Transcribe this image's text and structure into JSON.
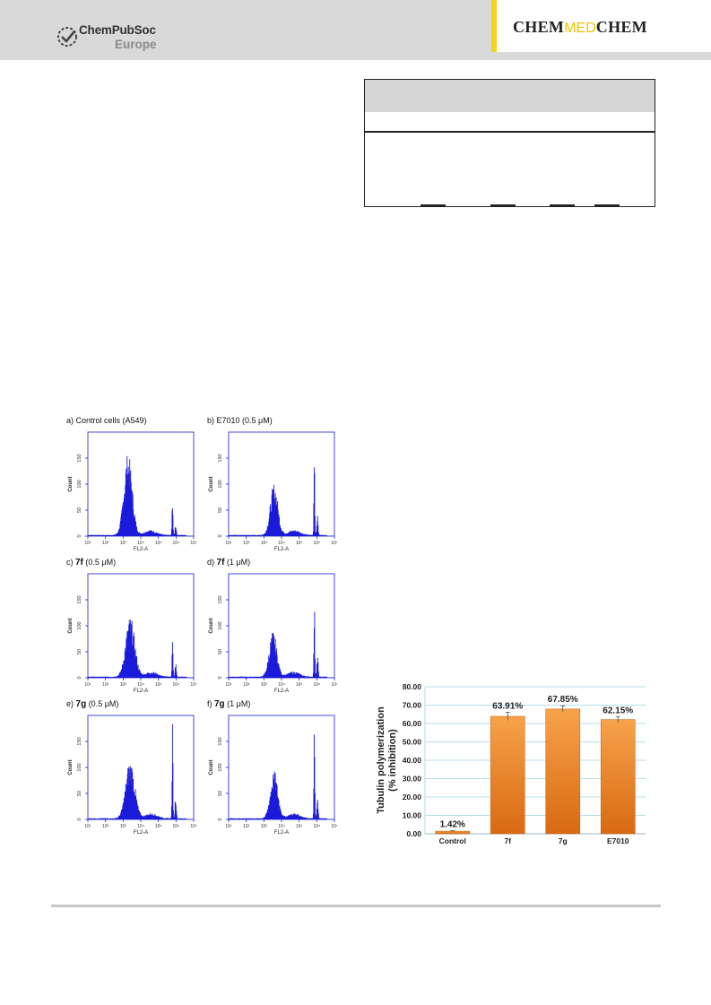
{
  "header": {
    "publisher": "ChemPubSoc",
    "publisher_sub": "Europe",
    "journal_part1": "CHEM",
    "journal_part2": "MED",
    "journal_part3": "CHEM",
    "journal_accent": "#f2c300"
  },
  "flow_panels": [
    {
      "prefix": "a) ",
      "bold": "",
      "label": "Control cells (A549)",
      "g1_peak": 130,
      "g2_peak": 70,
      "g1_center": 0.38,
      "g2_center": 0.8,
      "spread": 0.055
    },
    {
      "prefix": "b) ",
      "bold": "",
      "label": "E7010 (0.5 μM)",
      "g1_peak": 82,
      "g2_peak": 140,
      "g1_center": 0.43,
      "g2_center": 0.81,
      "spread": 0.05
    },
    {
      "prefix": "c) ",
      "bold": "7f",
      "label": " (0.5 μM)",
      "g1_peak": 95,
      "g2_peak": 85,
      "g1_center": 0.4,
      "g2_center": 0.8,
      "spread": 0.06
    },
    {
      "prefix": "d) ",
      "bold": "7f",
      "label": " (1 μM)",
      "g1_peak": 72,
      "g2_peak": 140,
      "g1_center": 0.42,
      "g2_center": 0.81,
      "spread": 0.05
    },
    {
      "prefix": "e) ",
      "bold": "7g",
      "label": " (0.5 μM)",
      "g1_peak": 92,
      "g2_peak": 150,
      "g1_center": 0.4,
      "g2_center": 0.8,
      "spread": 0.06
    },
    {
      "prefix": "f) ",
      "bold": "7g",
      "label": " (1 μM)",
      "g1_peak": 75,
      "g2_peak": 145,
      "g1_center": 0.43,
      "g2_center": 0.81,
      "spread": 0.05
    }
  ],
  "flow_axes": {
    "ylabel": "Count",
    "xlabel": "FL2-A",
    "yticks": [
      "0",
      "50",
      "100",
      "150"
    ],
    "xticks": [
      "10¹",
      "10²",
      "10³",
      "10⁴",
      "10⁵",
      "10⁶",
      "10⁷"
    ],
    "color": "#1a1adb"
  },
  "chart_data": {
    "type": "bar",
    "categories": [
      "Control",
      "7f",
      "7g",
      "E7010"
    ],
    "values": [
      1.42,
      63.91,
      67.85,
      62.15
    ],
    "errors": [
      0.3,
      2.2,
      1.8,
      1.6
    ],
    "data_labels": [
      "1.42%",
      "63.91%",
      "67.85%",
      "62.15%"
    ],
    "ylabel": "Tubulin polymerization\n(% inhibition)",
    "ylabel_line1": "Tubulin polymerization",
    "ylabel_line2": "(% inhibition)",
    "yticks": [
      "0.00",
      "10.00",
      "20.00",
      "30.00",
      "40.00",
      "50.00",
      "60.00",
      "70.00",
      "80.00"
    ],
    "ylim": [
      0,
      80
    ],
    "grid": true,
    "bar_color_top": "#f7a24a",
    "bar_color_bottom": "#d86a12",
    "grid_color": "#9fd3e6"
  }
}
